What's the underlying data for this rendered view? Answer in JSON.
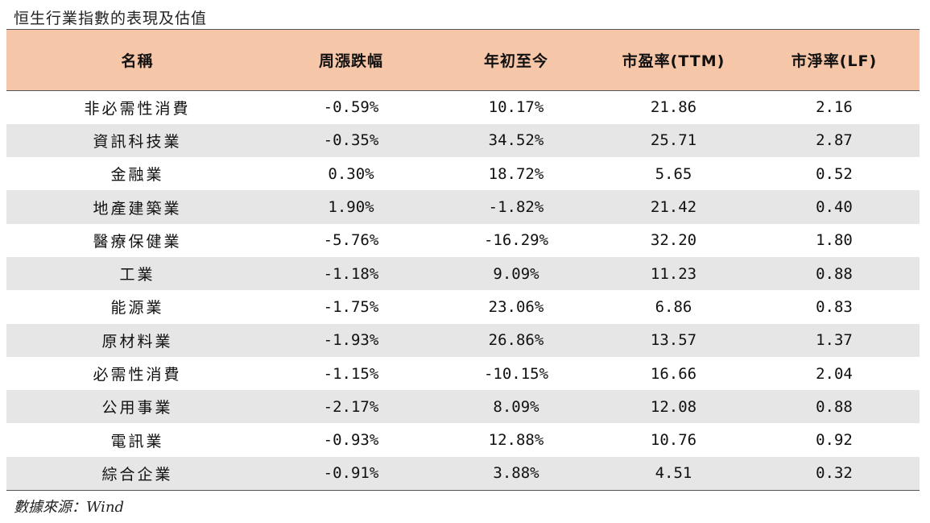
{
  "title": "恒生行業指數的表現及估值",
  "table": {
    "headers": [
      "名稱",
      "周漲跌幅",
      "年初至今",
      "市盈率(TTM)",
      "市淨率(LF)"
    ],
    "rows": [
      [
        "非必需性消費",
        "-0.59%",
        "10.17%",
        "21.86",
        "2.16"
      ],
      [
        "資訊科技業",
        "-0.35%",
        "34.52%",
        "25.71",
        "2.87"
      ],
      [
        "金融業",
        "0.30%",
        "18.72%",
        "5.65",
        "0.52"
      ],
      [
        "地產建築業",
        "1.90%",
        "-1.82%",
        "21.42",
        "0.40"
      ],
      [
        "醫療保健業",
        "-5.76%",
        "-16.29%",
        "32.20",
        "1.80"
      ],
      [
        "工業",
        "-1.18%",
        "9.09%",
        "11.23",
        "0.88"
      ],
      [
        "能源業",
        "-1.75%",
        "23.06%",
        "6.86",
        "0.83"
      ],
      [
        "原材料業",
        "-1.93%",
        "26.86%",
        "13.57",
        "1.37"
      ],
      [
        "必需性消費",
        "-1.15%",
        "-10.15%",
        "16.66",
        "2.04"
      ],
      [
        "公用事業",
        "-2.17%",
        "8.09%",
        "12.08",
        "0.88"
      ],
      [
        "電訊業",
        "-0.93%",
        "12.88%",
        "10.76",
        "0.92"
      ],
      [
        "綜合企業",
        "-0.91%",
        "3.88%",
        "4.51",
        "0.32"
      ]
    ]
  },
  "source": "數據來源：Wind",
  "colors": {
    "header_bg": "#f6c6a8",
    "stripe_bg": "#e6e6e6"
  }
}
